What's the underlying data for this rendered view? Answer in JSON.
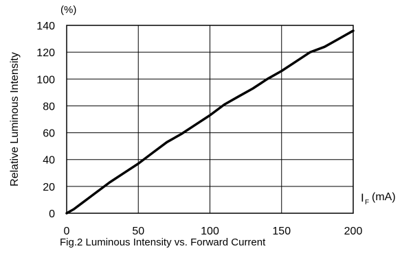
{
  "chart_data": {
    "type": "line",
    "title": "Fig.2 Luminous Intensity vs. Forward Current",
    "ylabel": "Relative Luminous Intensity",
    "y_unit": "(%)",
    "xlabel_symbol": "I",
    "xlabel_subscript": "F",
    "xlabel_unit": "(mA)",
    "xlim": [
      0,
      200
    ],
    "ylim": [
      0,
      140
    ],
    "x_ticks": [
      0,
      50,
      100,
      150,
      200
    ],
    "y_ticks": [
      0,
      20,
      40,
      60,
      80,
      100,
      120,
      140
    ],
    "grid": true,
    "series": [
      {
        "x": [
          0,
          5,
          10,
          20,
          30,
          40,
          50,
          60,
          70,
          80,
          90,
          100,
          110,
          120,
          130,
          140,
          150,
          160,
          170,
          180,
          190,
          200
        ],
        "y": [
          0,
          3,
          7,
          15,
          23,
          30,
          37,
          45,
          53,
          59,
          66,
          73,
          81,
          87,
          93,
          100,
          106,
          113,
          120,
          124,
          130,
          136
        ]
      }
    ]
  }
}
